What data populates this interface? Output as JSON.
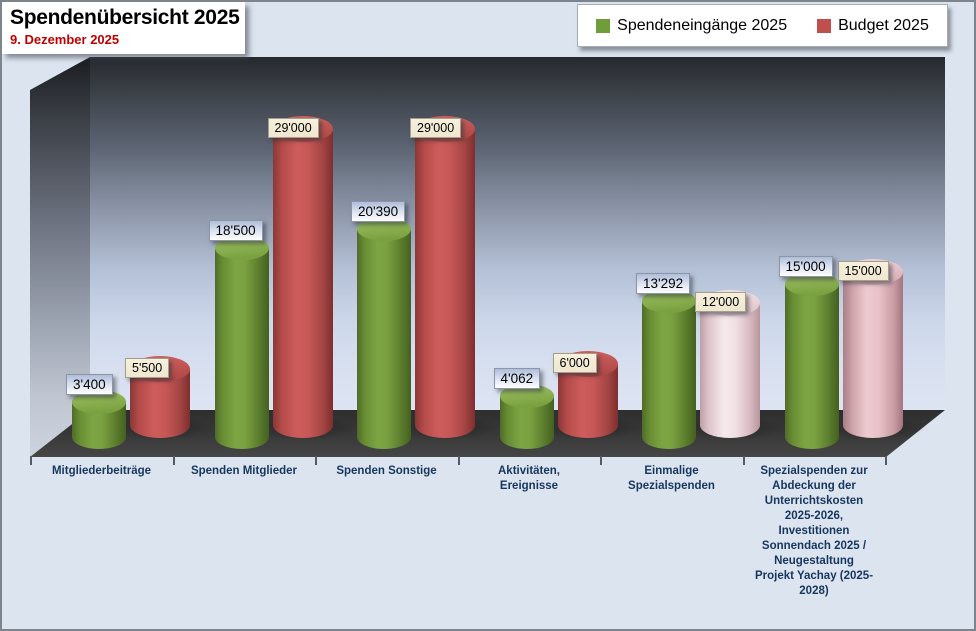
{
  "window": {
    "background": "#dce4f0",
    "border_color": "#7d848e"
  },
  "header": {
    "title": "Spendenübersicht 2025",
    "date": "9. Dezember 2025",
    "title_color": "#000000",
    "date_color": "#c00000"
  },
  "legend": {
    "items": [
      {
        "label": "Spendeneingänge 2025",
        "swatch_color": "#6f9d3a"
      },
      {
        "label": "Budget 2025",
        "swatch_color": "#c0504d"
      }
    ]
  },
  "chart_data": {
    "type": "bar",
    "style": "3d-cylinder",
    "title": "Spendenübersicht 2025",
    "subtitle": "9. Dezember 2025",
    "legend_position": "top-right",
    "grid": false,
    "ylim": [
      0,
      29000
    ],
    "categories": [
      "Mitgliederbeiträge",
      "Spenden Mitglieder",
      "Spenden Sonstige",
      "Aktivitäten, Ereignisse",
      "Einmalige Spezialspenden",
      "Spezialspenden zur Abdeckung der Unterrichtskosten 2025-2026, Investitionen Sonnendach 2025 / Neugestaltung Projekt Yachay (2025-2028)"
    ],
    "category_lines": [
      [
        "Mitgliederbeiträge"
      ],
      [
        "Spenden Mitglieder"
      ],
      [
        "Spenden Sonstige"
      ],
      [
        "Aktivitäten,",
        "Ereignisse"
      ],
      [
        "Einmalige",
        "Spezialspenden"
      ],
      [
        "Spezialspenden zur",
        "Abdeckung der",
        "Unterrichtskosten",
        "2025-2026,",
        "Investitionen",
        "Sonnendach 2025 /",
        "Neugestaltung",
        "Projekt Yachay (2025-",
        "2028)"
      ]
    ],
    "series": [
      {
        "name": "Spendeneingänge 2025",
        "values": [
          3400,
          18500,
          20390,
          4062,
          13292,
          15000
        ],
        "labels": [
          "3'400",
          "18'500",
          "20'390",
          "4'062",
          "13'292",
          "15'000"
        ],
        "fills": [
          "green",
          "green",
          "green",
          "green",
          "green",
          "green"
        ]
      },
      {
        "name": "Budget 2025",
        "values": [
          5500,
          29000,
          29000,
          6000,
          12000,
          15000
        ],
        "labels": [
          "5'500",
          "29'000",
          "29'000",
          "6'000",
          "12'000",
          "15'000"
        ],
        "fills": [
          "red",
          "red",
          "red",
          "red",
          "pink_pale",
          "pink"
        ]
      }
    ],
    "colors": {
      "green": "#79a03f",
      "red": "#cd5d5c",
      "pink_pale": "#f5e7ea",
      "pink": "#eeccd1"
    }
  }
}
